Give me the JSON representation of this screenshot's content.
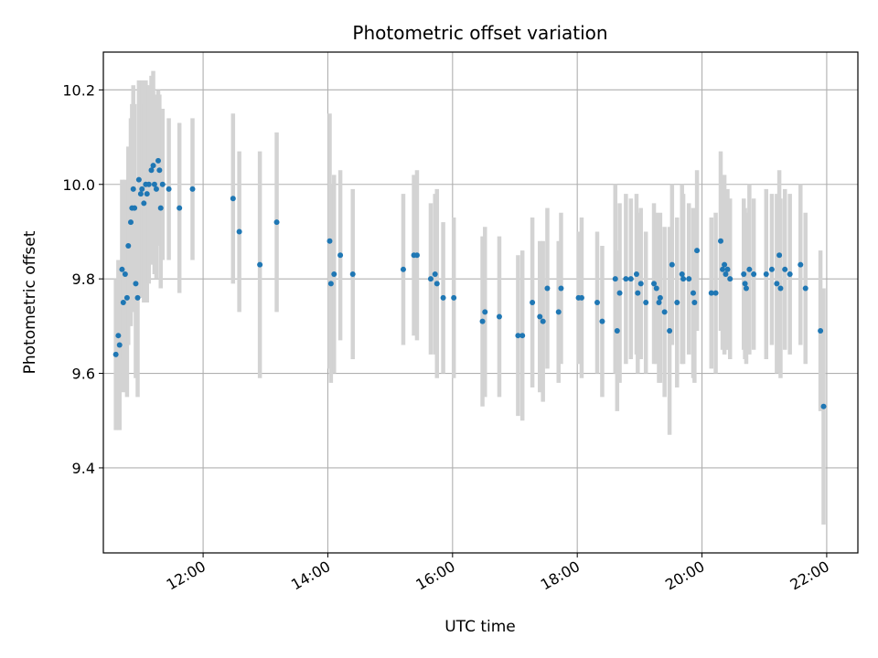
{
  "chart_data": {
    "type": "scatter",
    "title": "Photometric offset variation",
    "xlabel": "UTC time",
    "ylabel": "Photometric offset",
    "x_unit": "hours (UTC)",
    "xlim": [
      10.4,
      22.5
    ],
    "ylim": [
      9.22,
      10.28
    ],
    "x_ticks": [
      {
        "value": 12,
        "label": "12:00"
      },
      {
        "value": 14,
        "label": "14:00"
      },
      {
        "value": 16,
        "label": "16:00"
      },
      {
        "value": 18,
        "label": "18:00"
      },
      {
        "value": 20,
        "label": "20:00"
      },
      {
        "value": 22,
        "label": "22:00"
      }
    ],
    "y_ticks": [
      {
        "value": 9.4,
        "label": "9.4"
      },
      {
        "value": 9.6,
        "label": "9.6"
      },
      {
        "value": 9.8,
        "label": "9.8"
      },
      {
        "value": 10.0,
        "label": "10.0"
      },
      {
        "value": 10.2,
        "label": "10.2"
      }
    ],
    "grid": true,
    "marker_color": "#1f77b4",
    "errorbar_color": "#d3d3d3",
    "points": [
      [
        10.6,
        9.64,
        0.16
      ],
      [
        10.64,
        9.68,
        0.16
      ],
      [
        10.66,
        9.66,
        0.18
      ],
      [
        10.7,
        9.82,
        0.19
      ],
      [
        10.72,
        9.75,
        0.19
      ],
      [
        10.75,
        9.81,
        0.2
      ],
      [
        10.78,
        9.76,
        0.21
      ],
      [
        10.8,
        9.87,
        0.21
      ],
      [
        10.84,
        9.92,
        0.22
      ],
      [
        10.86,
        9.95,
        0.22
      ],
      [
        10.88,
        9.99,
        0.22
      ],
      [
        10.9,
        9.95,
        0.22
      ],
      [
        10.92,
        9.79,
        0.2
      ],
      [
        10.95,
        9.76,
        0.21
      ],
      [
        10.97,
        10.01,
        0.21
      ],
      [
        11.0,
        9.98,
        0.22
      ],
      [
        11.02,
        9.99,
        0.23
      ],
      [
        11.05,
        9.96,
        0.21
      ],
      [
        11.08,
        10.0,
        0.22
      ],
      [
        11.1,
        9.98,
        0.23
      ],
      [
        11.13,
        10.0,
        0.21
      ],
      [
        11.17,
        10.03,
        0.2
      ],
      [
        11.2,
        10.04,
        0.2
      ],
      [
        11.22,
        10.0,
        0.19
      ],
      [
        11.25,
        9.99,
        0.19
      ],
      [
        11.28,
        10.05,
        0.15
      ],
      [
        11.3,
        10.03,
        0.16
      ],
      [
        11.32,
        9.95,
        0.17
      ],
      [
        11.35,
        10.0,
        0.16
      ],
      [
        11.45,
        9.99,
        0.15
      ],
      [
        11.62,
        9.95,
        0.18
      ],
      [
        11.83,
        9.99,
        0.15
      ],
      [
        12.48,
        9.97,
        0.18
      ],
      [
        12.58,
        9.9,
        0.17
      ],
      [
        12.91,
        9.83,
        0.24
      ],
      [
        13.18,
        9.92,
        0.19
      ],
      [
        14.03,
        9.88,
        0.27
      ],
      [
        14.05,
        9.79,
        0.21
      ],
      [
        14.1,
        9.81,
        0.21
      ],
      [
        14.2,
        9.85,
        0.18
      ],
      [
        14.4,
        9.81,
        0.18
      ],
      [
        15.21,
        9.82,
        0.16
      ],
      [
        15.38,
        9.85,
        0.17
      ],
      [
        15.43,
        9.85,
        0.18
      ],
      [
        15.65,
        9.8,
        0.16
      ],
      [
        15.72,
        9.81,
        0.17
      ],
      [
        15.75,
        9.79,
        0.2
      ],
      [
        15.85,
        9.76,
        0.16
      ],
      [
        16.02,
        9.76,
        0.17
      ],
      [
        16.48,
        9.71,
        0.18
      ],
      [
        16.52,
        9.73,
        0.18
      ],
      [
        16.75,
        9.72,
        0.17
      ],
      [
        17.05,
        9.68,
        0.17
      ],
      [
        17.12,
        9.68,
        0.18
      ],
      [
        17.28,
        9.75,
        0.18
      ],
      [
        17.4,
        9.72,
        0.16
      ],
      [
        17.45,
        9.71,
        0.17
      ],
      [
        17.52,
        9.78,
        0.17
      ],
      [
        17.7,
        9.73,
        0.15
      ],
      [
        17.74,
        9.78,
        0.16
      ],
      [
        18.02,
        9.76,
        0.14
      ],
      [
        18.07,
        9.76,
        0.17
      ],
      [
        18.32,
        9.75,
        0.15
      ],
      [
        18.4,
        9.71,
        0.16
      ],
      [
        18.61,
        9.8,
        0.2
      ],
      [
        18.64,
        9.69,
        0.17
      ],
      [
        18.68,
        9.77,
        0.19
      ],
      [
        18.78,
        9.8,
        0.18
      ],
      [
        18.86,
        9.8,
        0.17
      ],
      [
        18.95,
        9.81,
        0.17
      ],
      [
        18.97,
        9.77,
        0.17
      ],
      [
        19.02,
        9.79,
        0.16
      ],
      [
        19.1,
        9.75,
        0.15
      ],
      [
        19.23,
        9.79,
        0.17
      ],
      [
        19.27,
        9.78,
        0.16
      ],
      [
        19.31,
        9.75,
        0.17
      ],
      [
        19.33,
        9.76,
        0.18
      ],
      [
        19.4,
        9.73,
        0.18
      ],
      [
        19.48,
        9.69,
        0.22
      ],
      [
        19.52,
        9.83,
        0.17
      ],
      [
        19.6,
        9.75,
        0.18
      ],
      [
        19.68,
        9.81,
        0.19
      ],
      [
        19.7,
        9.8,
        0.18
      ],
      [
        19.79,
        9.8,
        0.16
      ],
      [
        19.86,
        9.77,
        0.18
      ],
      [
        19.88,
        9.75,
        0.17
      ],
      [
        19.92,
        9.86,
        0.17
      ],
      [
        20.15,
        9.77,
        0.16
      ],
      [
        20.22,
        9.77,
        0.17
      ],
      [
        20.3,
        9.88,
        0.19
      ],
      [
        20.33,
        9.82,
        0.17
      ],
      [
        20.36,
        9.83,
        0.19
      ],
      [
        20.38,
        9.81,
        0.16
      ],
      [
        20.41,
        9.82,
        0.17
      ],
      [
        20.45,
        9.8,
        0.17
      ],
      [
        20.67,
        9.81,
        0.16
      ],
      [
        20.69,
        9.79,
        0.16
      ],
      [
        20.71,
        9.78,
        0.16
      ],
      [
        20.76,
        9.82,
        0.18
      ],
      [
        20.83,
        9.81,
        0.16
      ],
      [
        21.03,
        9.81,
        0.18
      ],
      [
        21.12,
        9.82,
        0.16
      ],
      [
        21.2,
        9.79,
        0.19
      ],
      [
        21.24,
        9.85,
        0.18
      ],
      [
        21.26,
        9.78,
        0.19
      ],
      [
        21.33,
        9.82,
        0.17
      ],
      [
        21.41,
        9.81,
        0.17
      ],
      [
        21.58,
        9.83,
        0.17
      ],
      [
        21.66,
        9.78,
        0.16
      ],
      [
        21.9,
        9.69,
        0.17
      ],
      [
        21.95,
        9.53,
        0.25
      ]
    ]
  }
}
